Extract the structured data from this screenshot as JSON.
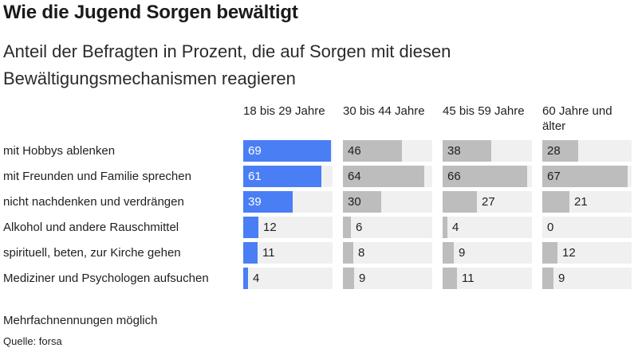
{
  "title": "Wie die Jugend Sorgen bewältigt",
  "subtitle": "Anteil der Befragten in Prozent, die auf Sorgen mit diesen Bewältigungsmechanismen reagieren",
  "note": "Mehrfachnennungen möglich",
  "source": "Quelle: forsa",
  "colors": {
    "primary": "#4a7ef5",
    "secondary": "#bdbdbd",
    "track": "#f0f0f0"
  },
  "chart_data": {
    "type": "bar",
    "orientation": "horizontal",
    "layout": "small-multiples",
    "title": "Wie die Jugend Sorgen bewältigt",
    "subtitle": "Anteil der Befragten in Prozent, die auf Sorgen mit diesen Bewältigungsmechanismen reagieren",
    "categories": [
      "mit Hobbys ablenken",
      "mit Freunden und Familie sprechen",
      "nicht nachdenken und verdrängen",
      "Alkohol und andere Rauschmittel",
      "spirituell, beten, zur Kirche gehen",
      "Mediziner und Psychologen aufsuchen"
    ],
    "xlim": [
      0,
      70
    ],
    "grid": false,
    "series": [
      {
        "name": "18 bis 29 Jahre",
        "values": [
          69,
          61,
          39,
          12,
          11,
          4
        ]
      },
      {
        "name": "30 bis 44 Jahre",
        "values": [
          46,
          64,
          30,
          6,
          8,
          9
        ]
      },
      {
        "name": "45 bis 59 Jahre",
        "values": [
          38,
          66,
          27,
          4,
          9,
          11
        ]
      },
      {
        "name": "60 Jahre und älter",
        "values": [
          28,
          67,
          21,
          0,
          12,
          9
        ]
      }
    ],
    "note": "Mehrfachnennungen möglich",
    "source": "Quelle: forsa"
  }
}
